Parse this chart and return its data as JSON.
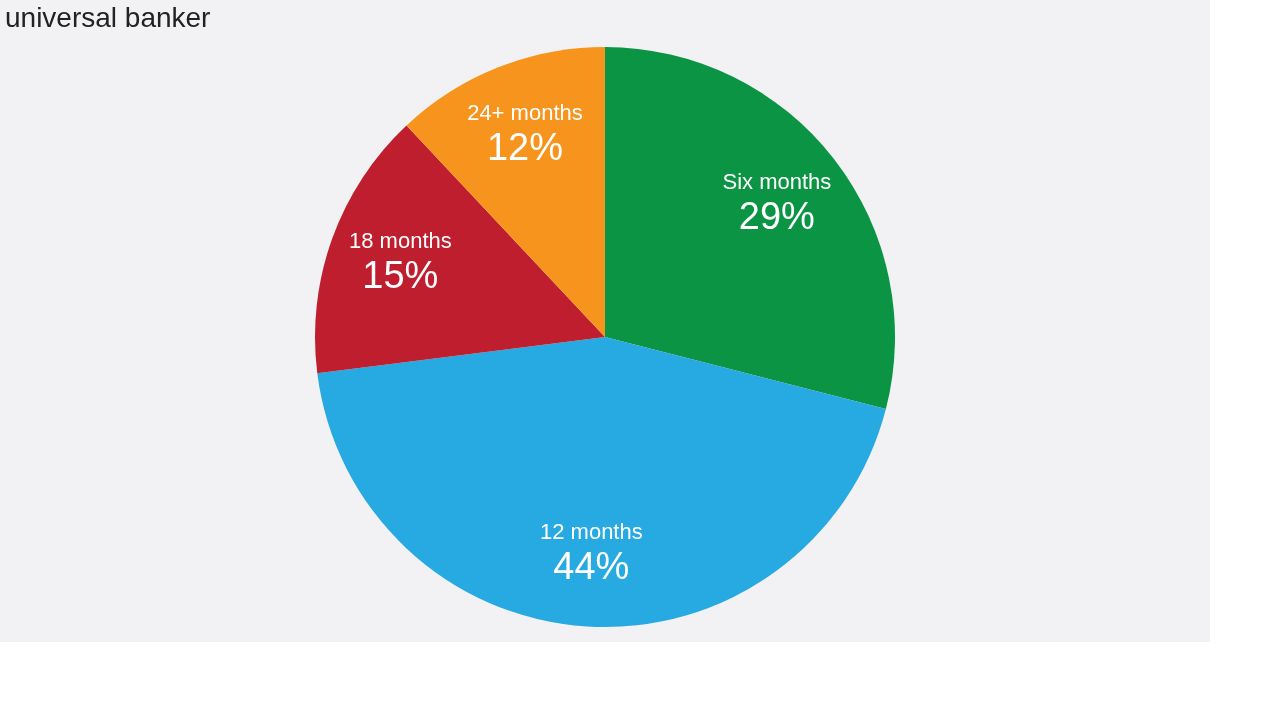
{
  "chart_data": {
    "type": "pie",
    "title": "universal banker",
    "categories": [
      "Six months",
      "12 months",
      "18 months",
      "24+ months"
    ],
    "values": [
      29,
      44,
      15,
      12
    ],
    "colors": [
      "#0a9444",
      "#27a9e1",
      "#be1e2d",
      "#f7941d"
    ],
    "value_labels": [
      "29%",
      "44%",
      "15%",
      "12%"
    ]
  }
}
